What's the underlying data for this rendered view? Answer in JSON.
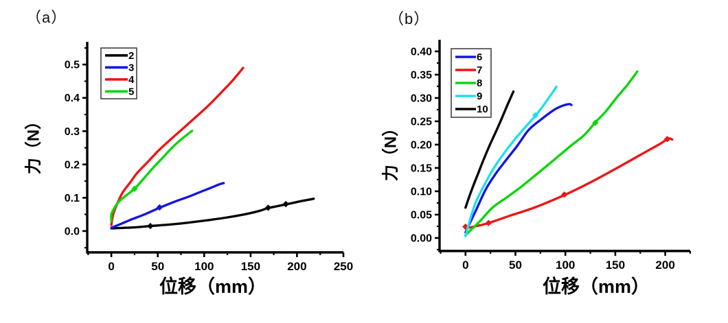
{
  "figure": {
    "background": "#ffffff",
    "axis_color": "#000000"
  },
  "chart_data": [
    {
      "panel_label": "（a）",
      "type": "line",
      "title": "",
      "xlabel": "位移（mm）",
      "ylabel": "力（N）",
      "xlim": [
        -26,
        250
      ],
      "ylim": [
        -0.064,
        0.56
      ],
      "x_tick_labels": [
        "0",
        "50",
        "100",
        "150",
        "200",
        "250"
      ],
      "y_tick_labels": [
        "0.0",
        "0.1",
        "0.2",
        "0.3",
        "0.4",
        "0.5"
      ],
      "grid": false,
      "legend_position": "top-left",
      "series": [
        {
          "name": "2",
          "color": "#050505",
          "points": [
            [
              0,
              0.008
            ],
            [
              25,
              0.011
            ],
            [
              42,
              0.015
            ],
            [
              65,
              0.02
            ],
            [
              85,
              0.026
            ],
            [
              105,
              0.033
            ],
            [
              125,
              0.041
            ],
            [
              145,
              0.051
            ],
            [
              160,
              0.061
            ],
            [
              169,
              0.069
            ],
            [
              188,
              0.08
            ],
            [
              203,
              0.089
            ],
            [
              218,
              0.097
            ]
          ],
          "markers": [
            [
              42,
              0.015
            ],
            [
              169,
              0.07
            ],
            [
              188,
              0.081
            ]
          ]
        },
        {
          "name": "3",
          "color": "#1515e0",
          "points": [
            [
              0,
              0.01
            ],
            [
              10,
              0.021
            ],
            [
              20,
              0.033
            ],
            [
              35,
              0.049
            ],
            [
              52,
              0.07
            ],
            [
              70,
              0.09
            ],
            [
              85,
              0.105
            ],
            [
              100,
              0.122
            ],
            [
              110,
              0.133
            ],
            [
              117,
              0.141
            ],
            [
              121,
              0.144
            ]
          ],
          "markers": [
            [
              52,
              0.071
            ]
          ]
        },
        {
          "name": "4",
          "color": "#ee1515",
          "points": [
            [
              0,
              0.018
            ],
            [
              2,
              0.05
            ],
            [
              6,
              0.08
            ],
            [
              12,
              0.115
            ],
            [
              20,
              0.145
            ],
            [
              28,
              0.175
            ],
            [
              40,
              0.21
            ],
            [
              52,
              0.245
            ],
            [
              65,
              0.278
            ],
            [
              78,
              0.31
            ],
            [
              92,
              0.345
            ],
            [
              105,
              0.378
            ],
            [
              118,
              0.415
            ],
            [
              130,
              0.45
            ],
            [
              142,
              0.49
            ]
          ],
          "markers": []
        },
        {
          "name": "5",
          "color": "#0cd60c",
          "points": [
            [
              0,
              0.03
            ],
            [
              0,
              0.05
            ],
            [
              3,
              0.068
            ],
            [
              8,
              0.088
            ],
            [
              15,
              0.105
            ],
            [
              25,
              0.127
            ],
            [
              35,
              0.158
            ],
            [
              45,
              0.19
            ],
            [
              56,
              0.222
            ],
            [
              66,
              0.252
            ],
            [
              76,
              0.277
            ],
            [
              87,
              0.301
            ]
          ],
          "markers": [
            [
              25,
              0.127
            ]
          ]
        }
      ]
    },
    {
      "panel_label": "（b）",
      "type": "line",
      "title": "",
      "xlabel": "位移（mm）",
      "ylabel": "力（N）",
      "xlim": [
        -26,
        225
      ],
      "ylim": [
        -0.028,
        0.419
      ],
      "x_tick_labels": [
        "0",
        "50",
        "100",
        "150",
        "200"
      ],
      "y_tick_labels": [
        "0.00",
        "0.05",
        "0.10",
        "0.15",
        "0.20",
        "0.25",
        "0.30",
        "0.35",
        "0.40"
      ],
      "grid": false,
      "legend_position": "top-left",
      "series": [
        {
          "name": "6",
          "color": "#1515e0",
          "points": [
            [
              0,
              0.012
            ],
            [
              5,
              0.035
            ],
            [
              10,
              0.057
            ],
            [
              20,
              0.103
            ],
            [
              30,
              0.137
            ],
            [
              41,
              0.168
            ],
            [
              52,
              0.198
            ],
            [
              63,
              0.231
            ],
            [
              75,
              0.253
            ],
            [
              89,
              0.275
            ],
            [
              98,
              0.284
            ],
            [
              104,
              0.287
            ],
            [
              106,
              0.285
            ]
          ],
          "markers": []
        },
        {
          "name": "7",
          "color": "#ee1515",
          "points": [
            [
              0,
              0.021
            ],
            [
              8,
              0.024
            ],
            [
              23,
              0.032
            ],
            [
              45,
              0.048
            ],
            [
              70,
              0.066
            ],
            [
              99,
              0.092
            ],
            [
              125,
              0.119
            ],
            [
              150,
              0.148
            ],
            [
              175,
              0.178
            ],
            [
              195,
              0.202
            ],
            [
              203,
              0.213
            ],
            [
              207,
              0.211
            ]
          ],
          "markers": [
            [
              0,
              0.024
            ],
            [
              23,
              0.032
            ],
            [
              99,
              0.093
            ],
            [
              202,
              0.212
            ]
          ]
        },
        {
          "name": "8",
          "color": "#0cd60c",
          "points": [
            [
              0,
              0.006
            ],
            [
              14,
              0.035
            ],
            [
              27,
              0.065
            ],
            [
              42,
              0.088
            ],
            [
              56,
              0.11
            ],
            [
              72,
              0.138
            ],
            [
              89,
              0.168
            ],
            [
              104,
              0.195
            ],
            [
              119,
              0.221
            ],
            [
              130,
              0.248
            ],
            [
              140,
              0.27
            ],
            [
              151,
              0.3
            ],
            [
              162,
              0.328
            ],
            [
              172,
              0.357
            ]
          ],
          "markers": [
            [
              130,
              0.247
            ]
          ]
        },
        {
          "name": "9",
          "color": "#1fdfee",
          "points": [
            [
              0,
              0.004
            ],
            [
              4,
              0.035
            ],
            [
              10,
              0.075
            ],
            [
              18,
              0.11
            ],
            [
              27,
              0.145
            ],
            [
              38,
              0.18
            ],
            [
              50,
              0.213
            ],
            [
              60,
              0.238
            ],
            [
              70,
              0.262
            ],
            [
              80,
              0.29
            ],
            [
              91,
              0.324
            ]
          ],
          "markers": [
            [
              70,
              0.263
            ]
          ]
        },
        {
          "name": "10",
          "color": "#050505",
          "points": [
            [
              0,
              0.065
            ],
            [
              4,
              0.09
            ],
            [
              8,
              0.113
            ],
            [
              13,
              0.14
            ],
            [
              17,
              0.162
            ],
            [
              22,
              0.188
            ],
            [
              27,
              0.212
            ],
            [
              32,
              0.235
            ],
            [
              38,
              0.265
            ],
            [
              43,
              0.29
            ],
            [
              48,
              0.314
            ]
          ],
          "markers": []
        }
      ]
    }
  ]
}
